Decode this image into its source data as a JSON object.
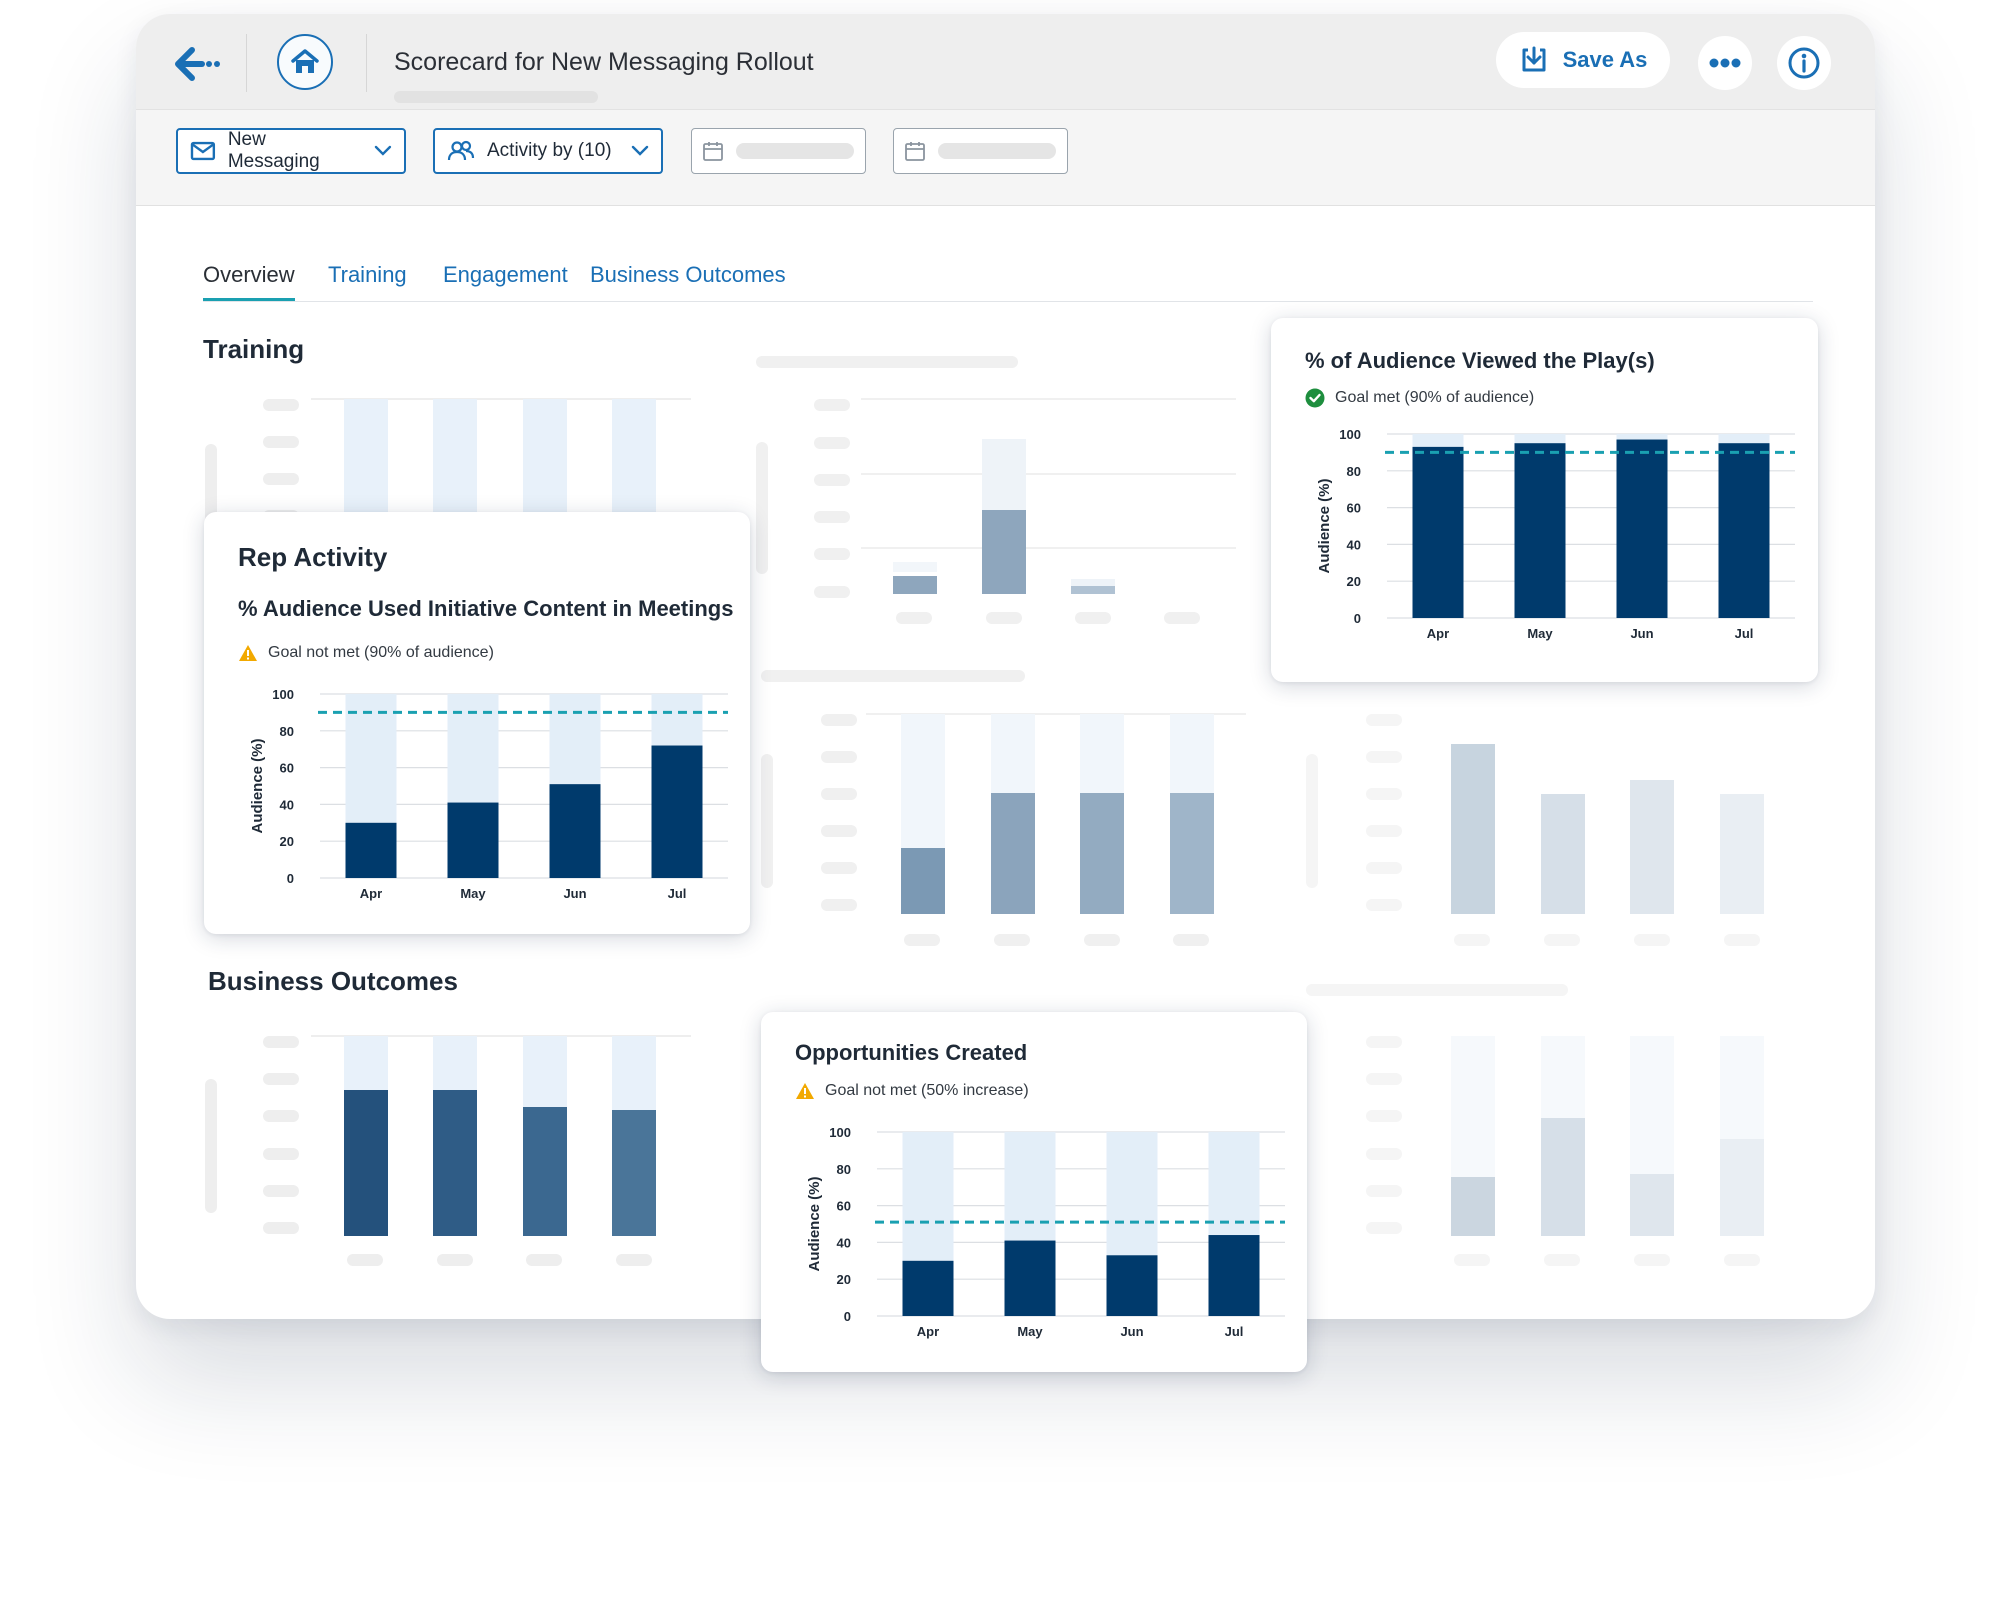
{
  "header": {
    "title": "Scorecard for New Messaging Rollout",
    "save_as_label": "Save As"
  },
  "filters": {
    "messaging": "New Messaging",
    "activity": "Activity by (10)"
  },
  "tabs": [
    {
      "label": "Overview",
      "active": true
    },
    {
      "label": "Training",
      "active": false
    },
    {
      "label": "Engagement",
      "active": false
    },
    {
      "label": "Business Outcomes",
      "active": false
    }
  ],
  "sections": {
    "training": "Training",
    "business_outcomes": "Business Outcomes"
  },
  "cards": {
    "rep_activity": {
      "heading": "Rep Activity",
      "subtitle": "% Audience Used Initiative Content in Meetings",
      "goal_text": "Goal not met (90% of audience)",
      "goal_status": "not-met"
    },
    "audience_viewed": {
      "heading": "% of Audience Viewed the Play(s)",
      "goal_text": "Goal met (90% of audience)",
      "goal_status": "met"
    },
    "opportunities": {
      "heading": "Opportunities Created",
      "goal_text": "Goal not met (50% increase)",
      "goal_status": "not-met"
    }
  },
  "colors": {
    "primary": "#1a6fb5",
    "bar": "#003a6c",
    "bar_bg": "#e3eef8",
    "goal_line": "#1aa0b1",
    "warning": "#f2a900",
    "success": "#1e8e3e"
  },
  "chart_data": [
    {
      "id": "rep_activity",
      "type": "bar",
      "categories": [
        "Apr",
        "May",
        "Jun",
        "Jul"
      ],
      "values": [
        30,
        41,
        51,
        72
      ],
      "ylabel": "Audience (%)",
      "ylim": [
        0,
        100
      ],
      "yticks": [
        0,
        20,
        40,
        60,
        80,
        100
      ],
      "goal": 90,
      "grid": true
    },
    {
      "id": "audience_viewed",
      "type": "bar",
      "categories": [
        "Apr",
        "May",
        "Jun",
        "Jul"
      ],
      "values": [
        93,
        95,
        97,
        95
      ],
      "ylabel": "Audience (%)",
      "ylim": [
        0,
        100
      ],
      "yticks": [
        0,
        20,
        40,
        60,
        80,
        100
      ],
      "goal": 90,
      "grid": true
    },
    {
      "id": "opportunities",
      "type": "bar",
      "categories": [
        "Apr",
        "May",
        "Jun",
        "Jul"
      ],
      "values": [
        30,
        41,
        33,
        44
      ],
      "ylabel": "Audience (%)",
      "ylim": [
        0,
        100
      ],
      "yticks": [
        0,
        20,
        40,
        60,
        80,
        100
      ],
      "goal": 51,
      "grid": true
    }
  ]
}
